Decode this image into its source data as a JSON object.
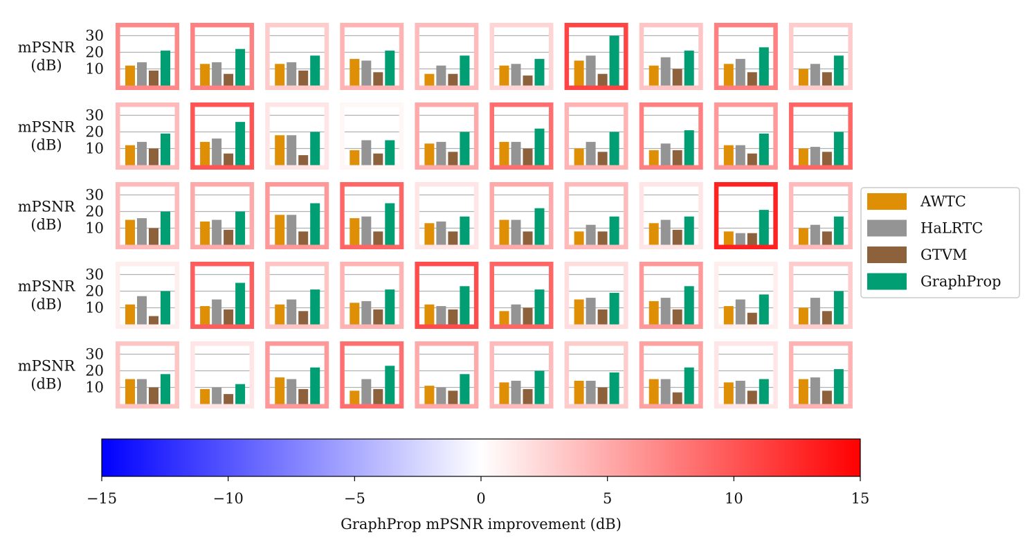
{
  "chart_data": {
    "type": "bar",
    "layout": "small-multiples grid, 5 rows x 10 columns",
    "ylabel": "mPSNR\n(dB)",
    "y_ticks": [
      10,
      20,
      30
    ],
    "ylim": [
      0,
      35
    ],
    "grid": true,
    "series_names": [
      "AWTC",
      "HaLRTC",
      "GTVM",
      "GraphProp"
    ],
    "series_colors": [
      "#de8f05",
      "#949494",
      "#8c613c",
      "#029e73"
    ],
    "legend_position": "right",
    "panels": [
      [
        [
          12,
          14,
          9,
          21
        ],
        [
          13,
          14,
          7,
          22
        ],
        [
          13,
          14,
          9,
          18
        ],
        [
          16,
          15,
          8,
          21
        ],
        [
          7,
          12,
          7,
          18
        ],
        [
          12,
          13,
          6,
          16
        ],
        [
          15,
          18,
          7,
          30
        ],
        [
          12,
          17,
          10,
          21
        ],
        [
          13,
          16,
          8,
          23
        ],
        [
          10,
          13,
          8,
          18
        ]
      ],
      [
        [
          12,
          14,
          10,
          19
        ],
        [
          14,
          16,
          7,
          26
        ],
        [
          18,
          18,
          6,
          20
        ],
        [
          9,
          15,
          7,
          15
        ],
        [
          13,
          14,
          8,
          20
        ],
        [
          14,
          14,
          10,
          22
        ],
        [
          10,
          14,
          8,
          20
        ],
        [
          9,
          13,
          9,
          21
        ],
        [
          12,
          12,
          7,
          19
        ],
        [
          10,
          11,
          8,
          20
        ]
      ],
      [
        [
          15,
          16,
          10,
          20
        ],
        [
          14,
          15,
          9,
          20
        ],
        [
          18,
          18,
          8,
          25
        ],
        [
          16,
          17,
          8,
          25
        ],
        [
          13,
          14,
          8,
          17
        ],
        [
          15,
          15,
          8,
          22
        ],
        [
          8,
          12,
          8,
          17
        ],
        [
          13,
          15,
          9,
          17
        ],
        [
          8,
          7,
          7,
          21
        ],
        [
          10,
          12,
          8,
          17
        ]
      ],
      [
        [
          12,
          17,
          5,
          20
        ],
        [
          11,
          15,
          9,
          25
        ],
        [
          12,
          15,
          8,
          21
        ],
        [
          13,
          14,
          9,
          21
        ],
        [
          12,
          11,
          9,
          23
        ],
        [
          8,
          12,
          10,
          21
        ],
        [
          15,
          16,
          9,
          19
        ],
        [
          14,
          16,
          9,
          23
        ],
        [
          11,
          15,
          7,
          18
        ],
        [
          10,
          16,
          8,
          20
        ]
      ],
      [
        [
          15,
          15,
          10,
          18
        ],
        [
          9,
          10,
          6,
          12
        ],
        [
          16,
          15,
          9,
          22
        ],
        [
          8,
          15,
          9,
          23
        ],
        [
          11,
          10,
          8,
          18
        ],
        [
          13,
          14,
          9,
          20
        ],
        [
          14,
          14,
          10,
          19
        ],
        [
          15,
          15,
          7,
          22
        ],
        [
          13,
          14,
          8,
          15
        ],
        [
          15,
          16,
          8,
          21
        ]
      ]
    ],
    "improvement_dB": [
      [
        7,
        7.5,
        3,
        4.5,
        4,
        2.5,
        11,
        3.5,
        7.5,
        3
      ],
      [
        4,
        10,
        1.5,
        0.5,
        5,
        8.5,
        4.5,
        7.5,
        6,
        9
      ],
      [
        4,
        5,
        6,
        9,
        1.5,
        5,
        4,
        1.5,
        13,
        4
      ],
      [
        1,
        9.5,
        3.5,
        4.5,
        10.5,
        9,
        2,
        6,
        1,
        3
      ],
      [
        3.5,
        1.5,
        6,
        8.5,
        5,
        4,
        3,
        5.5,
        1.5,
        4.5
      ]
    ],
    "colorbar": {
      "min": -15,
      "max": 15,
      "ticks": [
        -15,
        -10,
        -5,
        0,
        5,
        10,
        15
      ],
      "tick_labels": [
        "−15",
        "−10",
        "−5",
        "0",
        "5",
        "10",
        "15"
      ],
      "label": "GraphProp mPSNR improvement (dB)",
      "colormap": "bwr",
      "color_low": "#0000ff",
      "color_mid": "#ffffff",
      "color_high": "#ff0000"
    }
  }
}
